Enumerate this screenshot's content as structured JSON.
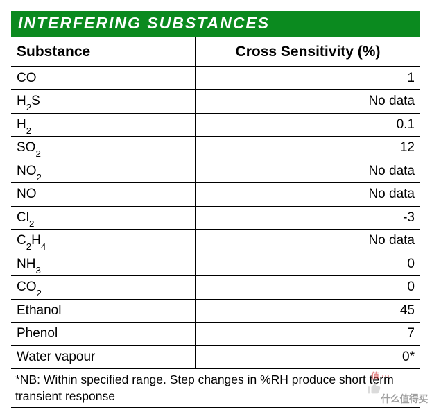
{
  "styling": {
    "title_bg": "#0b8a1f",
    "title_fg": "#ffffff",
    "border_color": "#000000",
    "body_bg": "#ffffff",
    "text_color": "#000000",
    "title_fontsize": 23,
    "header_fontsize": 21,
    "cell_fontsize": 19,
    "footnote_fontsize": 17.5,
    "col_widths_pct": [
      45,
      55
    ],
    "col_align": [
      "left",
      "right"
    ],
    "watermark_opacity": 0.55
  },
  "title": "INTERFERING SUBSTANCES",
  "table": {
    "columns": [
      "Substance",
      "Cross Sensitivity (%)"
    ],
    "rows": [
      {
        "substance_html": "CO",
        "value": "1"
      },
      {
        "substance_html": "H<sub>2</sub>S",
        "value": "No data"
      },
      {
        "substance_html": "H<sub>2</sub>",
        "value": "0.1"
      },
      {
        "substance_html": "SO<sub>2</sub>",
        "value": "12"
      },
      {
        "substance_html": "NO<sub>2</sub>",
        "value": "No data"
      },
      {
        "substance_html": "NO",
        "value": "No data"
      },
      {
        "substance_html": "Cl<sub>2</sub>",
        "value": "-3"
      },
      {
        "substance_html": "C<sub>2</sub>H<sub>4</sub>",
        "value": "No data"
      },
      {
        "substance_html": "NH<sub>3</sub>",
        "value": "0"
      },
      {
        "substance_html": "CO<sub>2</sub>",
        "value": "0"
      },
      {
        "substance_html": "Ethanol",
        "value": "45"
      },
      {
        "substance_html": "Phenol",
        "value": "7"
      },
      {
        "substance_html": "Water vapour",
        "value": "0*"
      }
    ]
  },
  "footnote": "*NB: Within specified range. Step changes in %RH produce short term transient response",
  "watermark": {
    "bubble_text": "值 ···",
    "main_text": "什么值得买",
    "bubble_color": "#cf2d2d",
    "main_color": "#515151"
  }
}
